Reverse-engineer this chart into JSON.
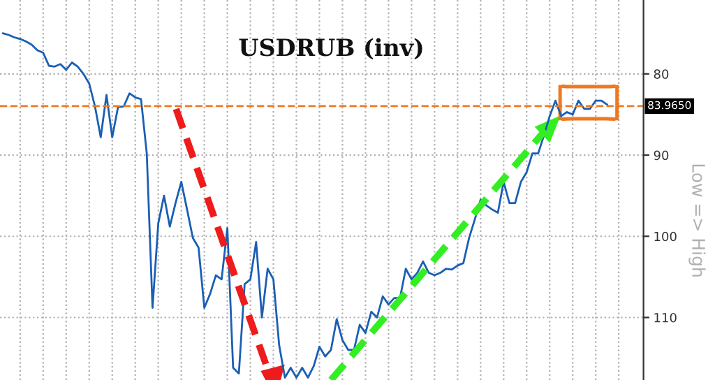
{
  "chart_data": {
    "type": "line",
    "title": "USDRUB (inv)",
    "annotations": [
      "Low => High"
    ],
    "categories": [
      null,
      null,
      null,
      null,
      null,
      null,
      null,
      null,
      null,
      null,
      null,
      null,
      null,
      null,
      null,
      null,
      null,
      null,
      null,
      null,
      null,
      null,
      null,
      null,
      null,
      null,
      null,
      null,
      null,
      null,
      null,
      null,
      null,
      null,
      null,
      null,
      null,
      null,
      null,
      null,
      null,
      null,
      null,
      null,
      null,
      null,
      null,
      null,
      null,
      null,
      null,
      null,
      null,
      null,
      null,
      null,
      null,
      null,
      null,
      null,
      null,
      null,
      null,
      null,
      null,
      null,
      null,
      null,
      null,
      null,
      null,
      null,
      null,
      null,
      null,
      null,
      null,
      null,
      null,
      null,
      null,
      null,
      null,
      null,
      null,
      null,
      null,
      null,
      null,
      null,
      null,
      null,
      null,
      null,
      null,
      null,
      null,
      null,
      null,
      null,
      null,
      null,
      null,
      null,
      null,
      null
    ],
    "series": [
      {
        "color": "#1a5fb4",
        "values": [
          75.0,
          75.2,
          75.5,
          75.7,
          76.0,
          76.4,
          77.1,
          77.4,
          79.0,
          79.1,
          78.8,
          79.5,
          78.6,
          79.1,
          80.0,
          81.2,
          84.0,
          87.8,
          82.6,
          87.8,
          84.1,
          84.0,
          82.4,
          82.9,
          83.1,
          89.8,
          108.8,
          98.4,
          95.0,
          98.8,
          95.9,
          93.3,
          96.7,
          100.2,
          101.4,
          108.8,
          107.1,
          104.8,
          105.3,
          99.0,
          116.2,
          116.9,
          105.9,
          105.3,
          100.7,
          110.0,
          104.0,
          105.3,
          113.4,
          117.4,
          116.2,
          117.4,
          116.2,
          117.4,
          116.0,
          113.6,
          114.8,
          114.0,
          110.2,
          112.8,
          114.0,
          114.0,
          110.9,
          111.9,
          109.3,
          110.0,
          107.4,
          108.4,
          107.6,
          107.6,
          104.0,
          105.3,
          104.5,
          103.1,
          104.5,
          104.8,
          104.5,
          104.0,
          104.1,
          103.6,
          103.3,
          100.2,
          97.9,
          95.5,
          96.2,
          96.7,
          97.1,
          93.3,
          95.9,
          95.9,
          93.3,
          92.1,
          89.8,
          89.8,
          87.6,
          85.2,
          83.3,
          85.2,
          84.7,
          85.0,
          83.3,
          84.3,
          84.3,
          83.3,
          83.3,
          83.8
        ]
      }
    ],
    "ylim": [
      117.7,
      70.9
    ],
    "yticks": [
      80,
      90,
      100,
      110
    ],
    "tick_labels": "y",
    "grid": true,
    "ref_lines": [
      {
        "axis": "y",
        "value": 83.965,
        "label": "83.9650",
        "color": "#f07820",
        "line_style": "dashed"
      }
    ]
  }
}
